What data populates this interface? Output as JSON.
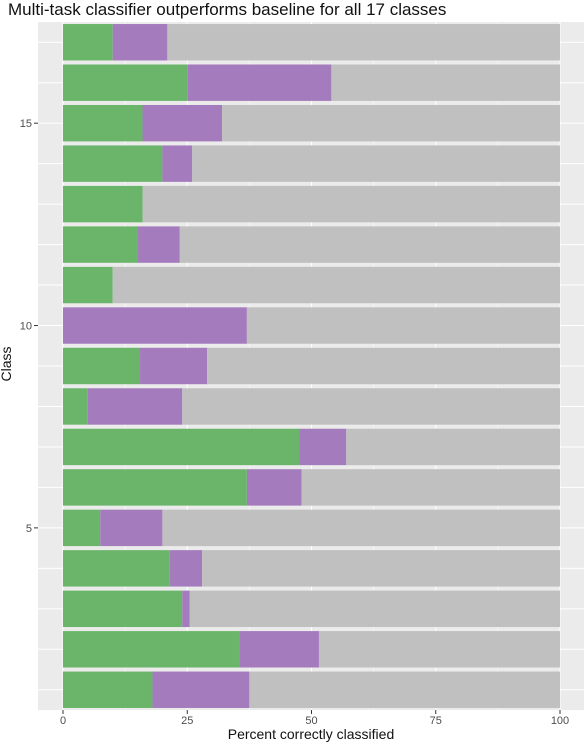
{
  "chart_data": {
    "type": "bar",
    "orientation": "horizontal",
    "stacked": true,
    "title": "Multi-task classifier outperforms baseline for all 17 classes",
    "xlabel": "Percent correctly classified",
    "ylabel": "Class",
    "xlim": [
      0,
      100
    ],
    "ylim": [
      0.5,
      17.5
    ],
    "x_ticks": [
      0,
      25,
      50,
      75,
      100
    ],
    "y_ticks": [
      5,
      10,
      15
    ],
    "grid": true,
    "legend": "none",
    "categories": [
      1,
      2,
      3,
      4,
      5,
      6,
      7,
      8,
      9,
      10,
      11,
      12,
      13,
      14,
      15,
      16,
      17
    ],
    "series": [
      {
        "color": "#6bb56b",
        "values": [
          18,
          35.5,
          24,
          21.5,
          7.5,
          37,
          47.5,
          5,
          15.5,
          0,
          10,
          15,
          16,
          20,
          16,
          25,
          10
        ]
      },
      {
        "color": "#a47bbd",
        "values": [
          19.5,
          16,
          1.5,
          6.5,
          12.5,
          11,
          9.5,
          19,
          13.5,
          37,
          0,
          8.5,
          0,
          6,
          16,
          29,
          11
        ]
      },
      {
        "color": "#c0c0c0",
        "values": [
          62.5,
          48.5,
          74.5,
          72,
          80,
          52,
          43,
          76,
          71,
          63,
          90,
          76.5,
          84,
          74,
          68,
          46,
          79
        ]
      }
    ],
    "colors": {
      "panel": "#ebebeb",
      "grid": "#ffffff",
      "text": "#4d4d4d"
    }
  }
}
